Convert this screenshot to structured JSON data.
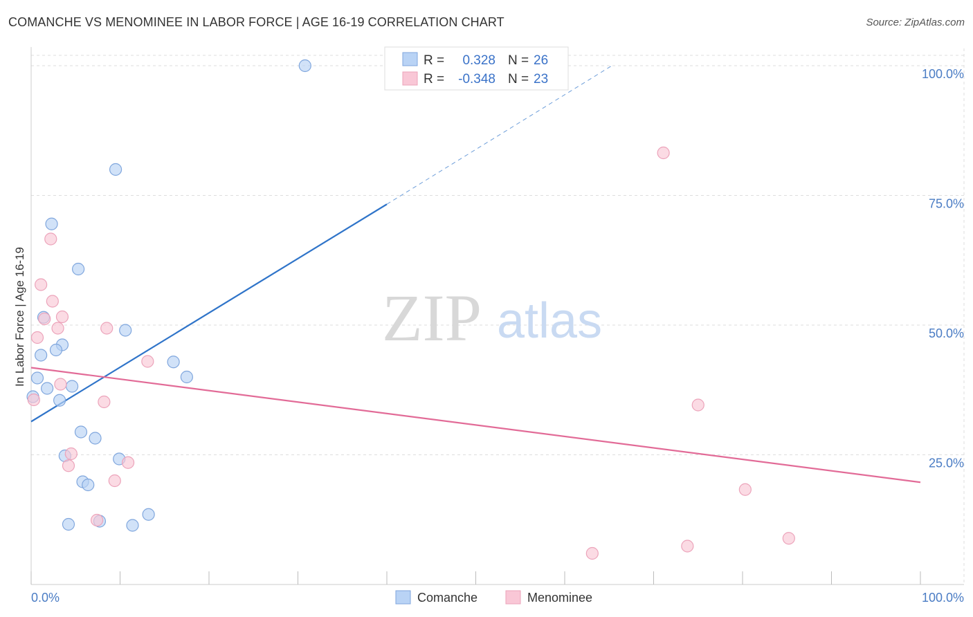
{
  "title": "COMANCHE VS MENOMINEE IN LABOR FORCE | AGE 16-19 CORRELATION CHART",
  "source": "Source: ZipAtlas.com",
  "watermark": {
    "zip": "ZIP",
    "atlas": "atlas"
  },
  "colors": {
    "blue_fill": "#b9d3f5",
    "blue_stroke": "#7fa6dd",
    "blue_line": "#2f74c9",
    "pink_fill": "#f9c7d6",
    "pink_stroke": "#eca3ba",
    "pink_line": "#e26b97",
    "grid": "#dddddd",
    "tick_text": "#4a7cc4"
  },
  "chart_data": {
    "type": "scatter",
    "title": "COMANCHE VS MENOMINEE IN LABOR FORCE | AGE 16-19 CORRELATION CHART",
    "xlabel": "",
    "ylabel": "In Labor Force | Age 16-19",
    "xlim": [
      0,
      100
    ],
    "ylim": [
      0,
      102
    ],
    "x_tick_labels": [
      "0.0%",
      "100.0%"
    ],
    "y_ticks": [
      25,
      50,
      75,
      100
    ],
    "y_tick_labels": [
      "25.0%",
      "50.0%",
      "75.0%",
      "100.0%"
    ],
    "legend": {
      "r_label": "R =",
      "n_label": "N =",
      "entries": [
        {
          "series": "Comanche",
          "r": "0.328",
          "n": "26"
        },
        {
          "series": "Menominee",
          "r": "-0.348",
          "n": "23"
        }
      ]
    },
    "series": [
      {
        "name": "Comanche",
        "color": "blue",
        "points": [
          {
            "x": 30.8,
            "y": 100.0
          },
          {
            "x": 9.5,
            "y": 80.0
          },
          {
            "x": 2.3,
            "y": 69.5
          },
          {
            "x": 5.3,
            "y": 60.8
          },
          {
            "x": 1.4,
            "y": 51.5
          },
          {
            "x": 10.6,
            "y": 49.0
          },
          {
            "x": 3.5,
            "y": 46.2
          },
          {
            "x": 2.8,
            "y": 45.2
          },
          {
            "x": 1.1,
            "y": 44.2
          },
          {
            "x": 16.0,
            "y": 42.9
          },
          {
            "x": 17.5,
            "y": 40.0
          },
          {
            "x": 0.7,
            "y": 39.8
          },
          {
            "x": 1.8,
            "y": 37.8
          },
          {
            "x": 4.6,
            "y": 38.2
          },
          {
            "x": 3.2,
            "y": 35.5
          },
          {
            "x": 0.2,
            "y": 36.2
          },
          {
            "x": 5.6,
            "y": 29.4
          },
          {
            "x": 7.2,
            "y": 28.2
          },
          {
            "x": 3.8,
            "y": 24.8
          },
          {
            "x": 9.9,
            "y": 24.2
          },
          {
            "x": 5.8,
            "y": 19.8
          },
          {
            "x": 6.4,
            "y": 19.2
          },
          {
            "x": 13.2,
            "y": 13.5
          },
          {
            "x": 7.7,
            "y": 12.2
          },
          {
            "x": 4.2,
            "y": 11.6
          },
          {
            "x": 11.4,
            "y": 11.4
          }
        ]
      },
      {
        "name": "Menominee",
        "color": "pink",
        "points": [
          {
            "x": 71.1,
            "y": 83.2
          },
          {
            "x": 2.2,
            "y": 66.6
          },
          {
            "x": 1.1,
            "y": 57.8
          },
          {
            "x": 2.4,
            "y": 54.6
          },
          {
            "x": 3.5,
            "y": 51.6
          },
          {
            "x": 1.5,
            "y": 51.2
          },
          {
            "x": 3.0,
            "y": 49.4
          },
          {
            "x": 8.5,
            "y": 49.4
          },
          {
            "x": 0.7,
            "y": 47.6
          },
          {
            "x": 13.1,
            "y": 43.0
          },
          {
            "x": 3.3,
            "y": 38.6
          },
          {
            "x": 8.2,
            "y": 35.2
          },
          {
            "x": 0.3,
            "y": 35.6
          },
          {
            "x": 75.0,
            "y": 34.6
          },
          {
            "x": 4.5,
            "y": 25.2
          },
          {
            "x": 4.2,
            "y": 22.9
          },
          {
            "x": 10.9,
            "y": 23.5
          },
          {
            "x": 9.4,
            "y": 20.0
          },
          {
            "x": 80.3,
            "y": 18.3
          },
          {
            "x": 7.4,
            "y": 12.4
          },
          {
            "x": 85.2,
            "y": 8.9
          },
          {
            "x": 73.8,
            "y": 7.4
          },
          {
            "x": 63.1,
            "y": 6.0
          }
        ]
      }
    ],
    "trend_lines": [
      {
        "series": "Comanche",
        "x0": 0,
        "y0": 31.4,
        "x1": 40.0,
        "y1": 73.3,
        "dashed_to_x": 65.3,
        "dashed_to_y": 100.0
      },
      {
        "series": "Menominee",
        "x0": 0,
        "y0": 41.8,
        "x1": 100,
        "y1": 19.7
      }
    ]
  }
}
